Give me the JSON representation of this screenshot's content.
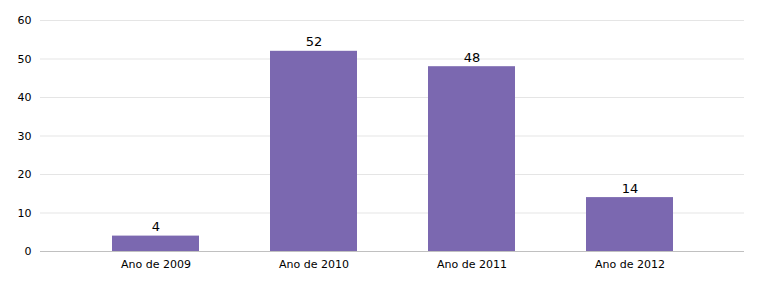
{
  "chart_data": {
    "type": "bar",
    "categories": [
      "Ano de 2009",
      "Ano de 2010",
      "Ano de 2011",
      "Ano de 2012"
    ],
    "values": [
      4,
      52,
      48,
      14
    ],
    "color": "#7B68B0",
    "ylim": [
      0,
      60
    ],
    "yticks": [
      0,
      10,
      20,
      30,
      40,
      50,
      60
    ],
    "grid": true,
    "data_labels": true
  }
}
